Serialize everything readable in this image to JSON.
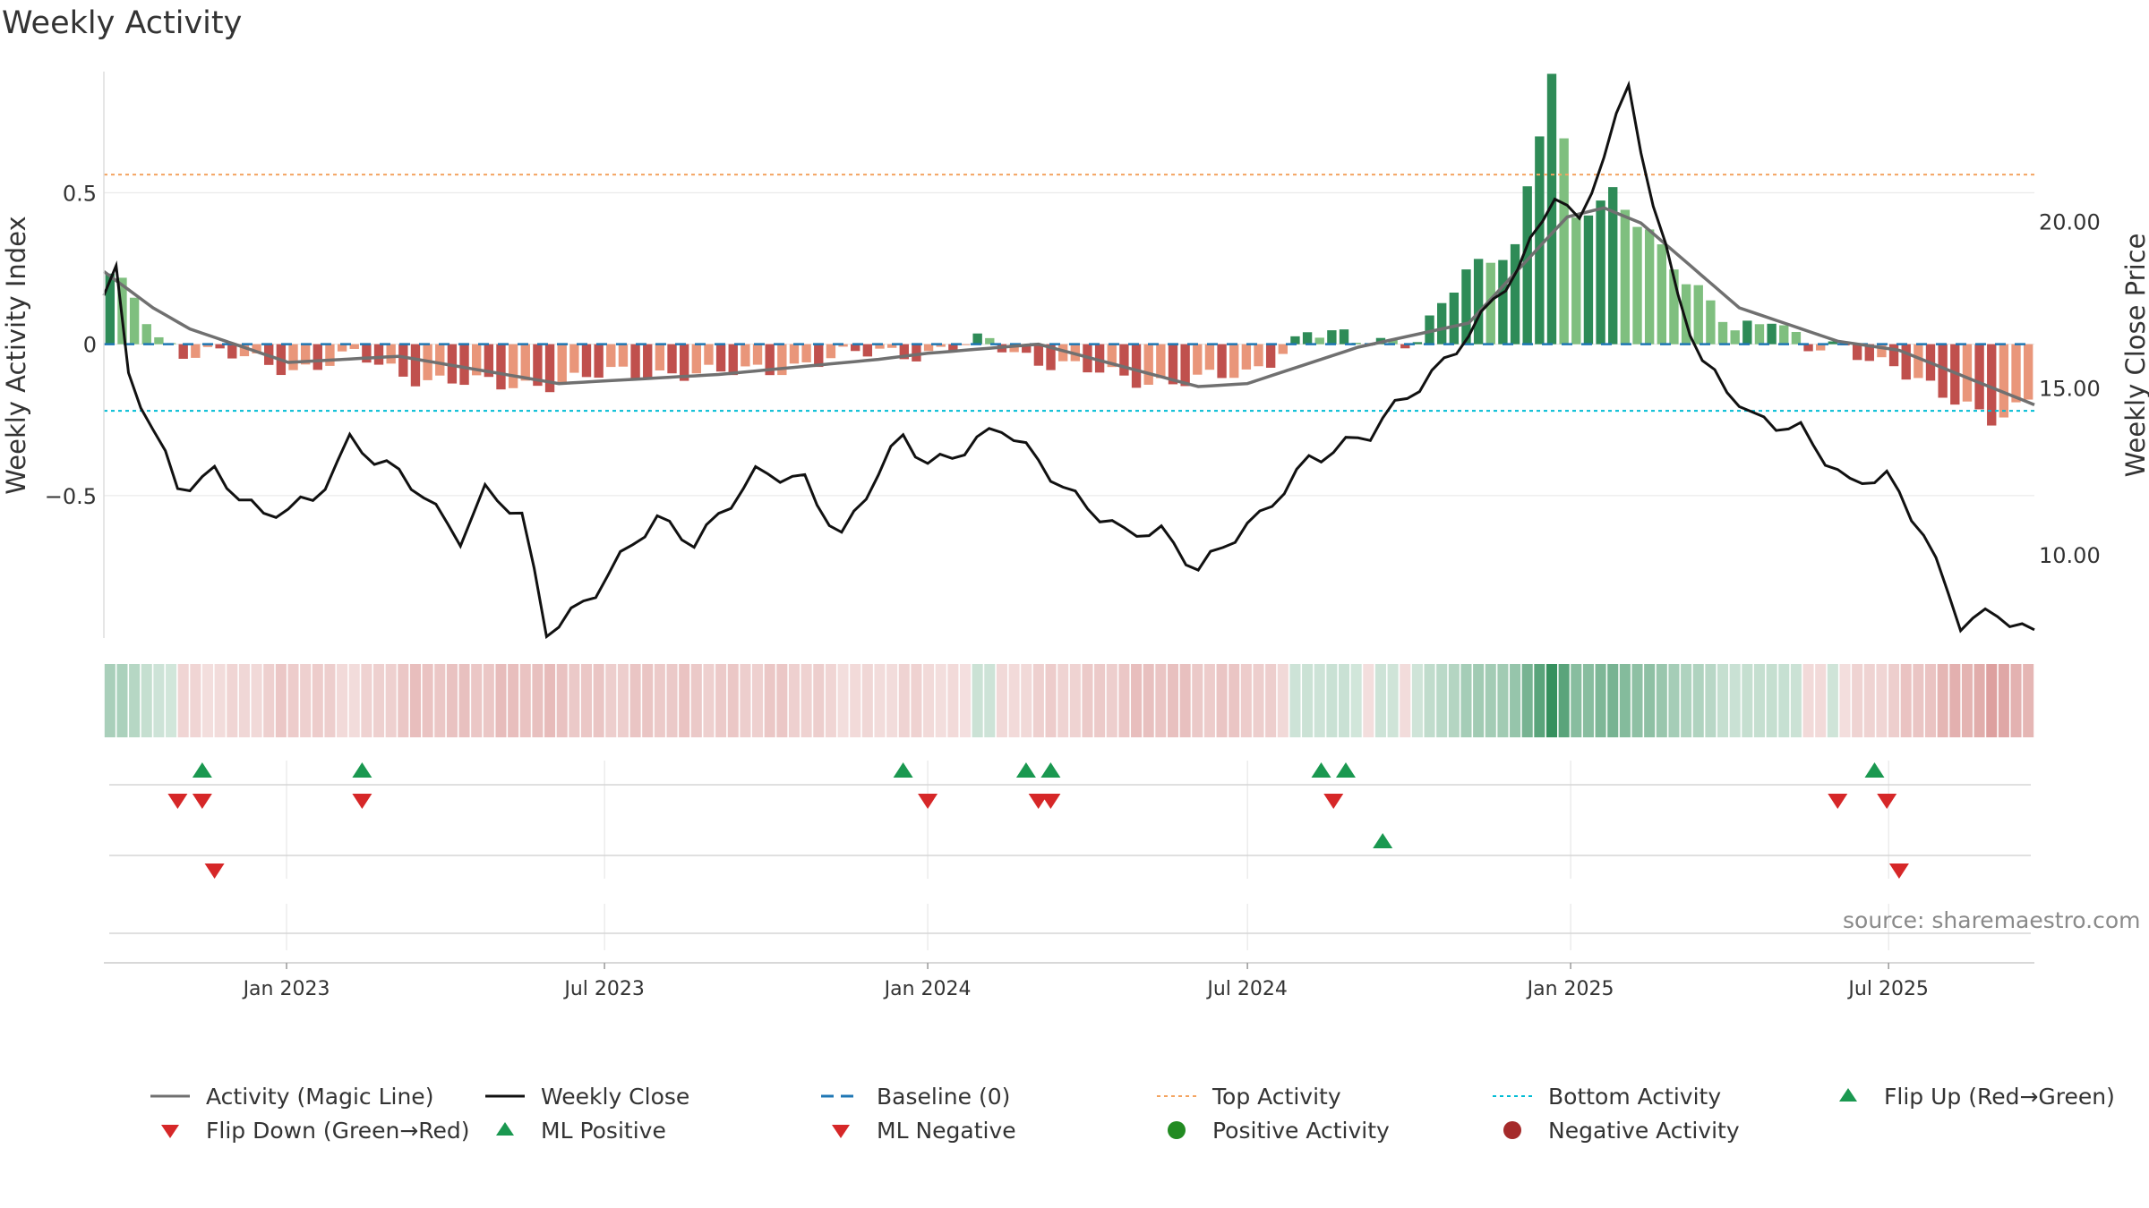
{
  "title": "Weekly Activity",
  "source": "source: sharemaestro.com",
  "colors": {
    "pos_dark": "#2e8b57",
    "pos_light": "#7fbf7f",
    "neg_dark": "#c0504d",
    "neg_light": "#e9967a",
    "magic": "#707070",
    "close": "#111111",
    "baseline": "#1f77b4",
    "top": "#f4a460",
    "bottom": "#00bcd4",
    "up": "#1a9850",
    "down": "#d62728"
  },
  "legend": [
    {
      "label": "Activity (Magic Line)",
      "symbol": "line-gray"
    },
    {
      "label": "Weekly Close",
      "symbol": "line-black"
    },
    {
      "label": "Baseline (0)",
      "symbol": "dash-blue"
    },
    {
      "label": "Top Activity",
      "symbol": "dot-orange"
    },
    {
      "label": "Bottom Activity",
      "symbol": "dot-cyan"
    },
    {
      "label": "Flip Up (Red→Green)",
      "symbol": "triangle-up-icon"
    },
    {
      "label": "Flip Down (Green→Red)",
      "symbol": "triangle-down-icon"
    },
    {
      "label": "ML Positive",
      "symbol": "triangle-up-icon"
    },
    {
      "label": "ML Negative",
      "symbol": "triangle-down-icon"
    },
    {
      "label": "Positive Activity",
      "symbol": "circle-green-icon"
    },
    {
      "label": "Negative Activity",
      "symbol": "circle-red-icon"
    }
  ],
  "chart_data": {
    "type": "bar",
    "title": "Weekly Activity",
    "ylabel": "Weekly Activity Index",
    "y2label": "Weekly Close Price",
    "ylim": [
      -0.97,
      0.9
    ],
    "y2lim": [
      7.5,
      24.5
    ],
    "yticks": [
      0.5,
      0,
      -0.5
    ],
    "ytick_labels": [
      "0.5",
      "0",
      "−0.5"
    ],
    "y2ticks": [
      20,
      15,
      10
    ],
    "y2tick_labels": [
      "20.00",
      "15.00",
      "10.00"
    ],
    "x_start": "2022-09-19",
    "x_end": "2025-09-22",
    "xtick_dates": [
      "2023-01-01",
      "2023-07-01",
      "2024-01-01",
      "2024-07-01",
      "2025-01-01",
      "2025-07-01"
    ],
    "xtick_labels": [
      "Jan 2023",
      "Jul 2023",
      "Jan 2024",
      "Jul 2024",
      "Jan 2025",
      "Jul 2025"
    ],
    "grid": true,
    "legend_position": "bottom",
    "top_activity": 0.56,
    "bottom_activity": -0.22,
    "baseline": 0,
    "activity_keys": [
      {
        "date": "2022-09-19",
        "value": 0.22
      },
      {
        "date": "2022-10-03",
        "value": 0.15
      },
      {
        "date": "2022-10-17",
        "value": 0.02
      },
      {
        "date": "2022-10-31",
        "value": -0.02
      },
      {
        "date": "2022-11-21",
        "value": -0.03
      },
      {
        "date": "2022-12-12",
        "value": -0.06
      },
      {
        "date": "2023-01-02",
        "value": -0.08
      },
      {
        "date": "2023-02-06",
        "value": -0.04
      },
      {
        "date": "2023-03-06",
        "value": -0.1
      },
      {
        "date": "2023-04-03",
        "value": -0.12
      },
      {
        "date": "2023-05-01",
        "value": -0.14
      },
      {
        "date": "2023-06-05",
        "value": -0.12
      },
      {
        "date": "2023-07-03",
        "value": -0.1
      },
      {
        "date": "2023-08-07",
        "value": -0.09
      },
      {
        "date": "2023-09-04",
        "value": -0.1
      },
      {
        "date": "2023-10-02",
        "value": -0.08
      },
      {
        "date": "2023-11-06",
        "value": -0.05
      },
      {
        "date": "2023-12-04",
        "value": -0.02
      },
      {
        "date": "2024-01-01",
        "value": -0.03
      },
      {
        "date": "2024-02-05",
        "value": 0.01
      },
      {
        "date": "2024-03-04",
        "value": -0.05
      },
      {
        "date": "2024-04-01",
        "value": -0.09
      },
      {
        "date": "2024-05-06",
        "value": -0.12
      },
      {
        "date": "2024-06-03",
        "value": -0.12
      },
      {
        "date": "2024-07-01",
        "value": -0.1
      },
      {
        "date": "2024-08-05",
        "value": 0.04
      },
      {
        "date": "2024-09-02",
        "value": 0.01
      },
      {
        "date": "2024-10-07",
        "value": 0.02
      },
      {
        "date": "2024-11-04",
        "value": 0.23
      },
      {
        "date": "2024-12-02",
        "value": 0.33
      },
      {
        "date": "2024-12-23",
        "value": 0.9
      },
      {
        "date": "2025-01-06",
        "value": 0.4
      },
      {
        "date": "2025-01-27",
        "value": 0.5
      },
      {
        "date": "2025-02-17",
        "value": 0.38
      },
      {
        "date": "2025-03-10",
        "value": 0.2
      },
      {
        "date": "2025-04-07",
        "value": 0.05
      },
      {
        "date": "2025-04-28",
        "value": 0.1
      },
      {
        "date": "2025-05-19",
        "value": -0.02
      },
      {
        "date": "2025-06-09",
        "value": -0.02
      },
      {
        "date": "2025-07-07",
        "value": -0.06
      },
      {
        "date": "2025-08-04",
        "value": -0.18
      },
      {
        "date": "2025-09-01",
        "value": -0.24
      },
      {
        "date": "2025-09-22",
        "value": -0.18
      }
    ],
    "magic_keys": [
      {
        "date": "2022-09-19",
        "value": 0.24
      },
      {
        "date": "2022-10-17",
        "value": 0.12
      },
      {
        "date": "2022-11-07",
        "value": 0.05
      },
      {
        "date": "2023-01-02",
        "value": -0.06
      },
      {
        "date": "2023-03-06",
        "value": -0.04
      },
      {
        "date": "2023-06-05",
        "value": -0.13
      },
      {
        "date": "2023-09-04",
        "value": -0.1
      },
      {
        "date": "2023-12-04",
        "value": -0.05
      },
      {
        "date": "2024-01-01",
        "value": -0.03
      },
      {
        "date": "2024-03-04",
        "value": 0.0
      },
      {
        "date": "2024-06-03",
        "value": -0.14
      },
      {
        "date": "2024-07-01",
        "value": -0.13
      },
      {
        "date": "2024-09-02",
        "value": -0.01
      },
      {
        "date": "2024-11-04",
        "value": 0.07
      },
      {
        "date": "2024-12-30",
        "value": 0.42
      },
      {
        "date": "2025-01-20",
        "value": 0.45
      },
      {
        "date": "2025-02-10",
        "value": 0.4
      },
      {
        "date": "2025-04-07",
        "value": 0.12
      },
      {
        "date": "2025-06-02",
        "value": 0.01
      },
      {
        "date": "2025-07-07",
        "value": -0.02
      },
      {
        "date": "2025-09-22",
        "value": -0.2
      }
    ],
    "close_keys": [
      {
        "date": "2022-09-19",
        "value": 18.0
      },
      {
        "date": "2022-09-26",
        "value": 18.5
      },
      {
        "date": "2022-10-03",
        "value": 15.3
      },
      {
        "date": "2022-10-31",
        "value": 12.0
      },
      {
        "date": "2022-11-21",
        "value": 12.6
      },
      {
        "date": "2022-12-19",
        "value": 11.0
      },
      {
        "date": "2023-01-16",
        "value": 11.7
      },
      {
        "date": "2023-02-06",
        "value": 13.5
      },
      {
        "date": "2023-02-20",
        "value": 12.8
      },
      {
        "date": "2023-03-20",
        "value": 11.8
      },
      {
        "date": "2023-04-10",
        "value": 10.6
      },
      {
        "date": "2023-04-24",
        "value": 11.9
      },
      {
        "date": "2023-05-15",
        "value": 11.0
      },
      {
        "date": "2023-05-29",
        "value": 7.7
      },
      {
        "date": "2023-06-26",
        "value": 9.0
      },
      {
        "date": "2023-07-31",
        "value": 11.0
      },
      {
        "date": "2023-08-21",
        "value": 10.5
      },
      {
        "date": "2023-09-25",
        "value": 12.3
      },
      {
        "date": "2023-10-23",
        "value": 12.3
      },
      {
        "date": "2023-11-13",
        "value": 10.6
      },
      {
        "date": "2023-12-18",
        "value": 13.5
      },
      {
        "date": "2024-01-01",
        "value": 12.8
      },
      {
        "date": "2024-02-12",
        "value": 13.7
      },
      {
        "date": "2024-03-11",
        "value": 12.5
      },
      {
        "date": "2024-04-22",
        "value": 10.5
      },
      {
        "date": "2024-05-13",
        "value": 10.7
      },
      {
        "date": "2024-06-03",
        "value": 9.7
      },
      {
        "date": "2024-07-08",
        "value": 11.0
      },
      {
        "date": "2024-08-05",
        "value": 13.0
      },
      {
        "date": "2024-09-09",
        "value": 13.5
      },
      {
        "date": "2024-09-30",
        "value": 14.8
      },
      {
        "date": "2024-11-11",
        "value": 17.0
      },
      {
        "date": "2024-12-02",
        "value": 18.5
      },
      {
        "date": "2024-12-23",
        "value": 21.0
      },
      {
        "date": "2025-01-06",
        "value": 20.0
      },
      {
        "date": "2025-02-03",
        "value": 23.9
      },
      {
        "date": "2025-02-17",
        "value": 20.5
      },
      {
        "date": "2025-03-03",
        "value": 18.0
      },
      {
        "date": "2025-03-17",
        "value": 15.8
      },
      {
        "date": "2025-04-14",
        "value": 14.0
      },
      {
        "date": "2025-05-12",
        "value": 13.9
      },
      {
        "date": "2025-06-09",
        "value": 12.0
      },
      {
        "date": "2025-06-30",
        "value": 12.3
      },
      {
        "date": "2025-07-21",
        "value": 10.8
      },
      {
        "date": "2025-08-11",
        "value": 7.9
      },
      {
        "date": "2025-09-01",
        "value": 8.1
      },
      {
        "date": "2025-09-22",
        "value": 7.7
      }
    ],
    "flip_up": [
      "2022-11-14",
      "2023-02-13",
      "2023-12-18",
      "2024-02-26",
      "2024-03-11",
      "2024-08-12",
      "2024-08-26",
      "2025-06-23"
    ],
    "flip_down": [
      "2022-10-31",
      "2022-11-14",
      "2023-02-13",
      "2024-01-01",
      "2024-03-04",
      "2024-03-11",
      "2024-08-19",
      "2025-06-02",
      "2025-06-30"
    ],
    "ml_positive": [
      "2024-09-16"
    ],
    "ml_negative": [
      "2022-11-21",
      "2025-07-07"
    ]
  }
}
